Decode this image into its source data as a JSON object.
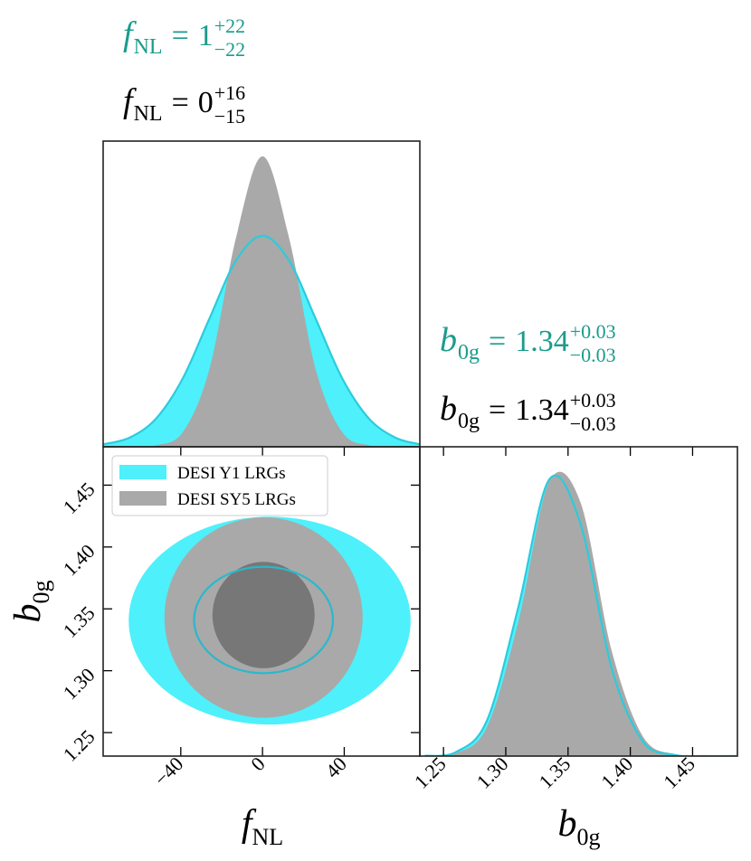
{
  "chart_data": [
    {
      "type": "density",
      "titles": [
        {
          "symbol": "f",
          "subscript": "NL",
          "relation": "=",
          "value": "1",
          "upper": "+22",
          "lower": "−22",
          "color": "#1a9c8c"
        },
        {
          "symbol": "f",
          "subscript": "NL",
          "relation": "=",
          "value": "0",
          "upper": "+16",
          "lower": "−15",
          "color": "#000000"
        }
      ],
      "xlim": [
        -78,
        77
      ],
      "ylim": [
        0,
        1
      ],
      "x": [
        -78,
        -65,
        -52,
        -39,
        -26,
        -13,
        0,
        13,
        26,
        39,
        52,
        65,
        77
      ],
      "series": [
        {
          "color": "#4ef0fb",
          "edge": "#2ccbdc",
          "values": [
            0.008,
            0.03,
            0.093,
            0.224,
            0.419,
            0.609,
            0.69,
            0.609,
            0.419,
            0.224,
            0.093,
            0.03,
            0.008
          ]
        },
        {
          "color": "#a9a9a9",
          "values": [
            0,
            0,
            0.005,
            0.048,
            0.254,
            0.683,
            0.95,
            0.683,
            0.254,
            0.048,
            0.005,
            0,
            0
          ]
        }
      ]
    },
    {
      "type": "contour",
      "xlabel": {
        "symbol": "f",
        "subscript": "NL"
      },
      "ylabel": {
        "symbol": "b",
        "subscript": "0g"
      },
      "xlim": [
        -78,
        77
      ],
      "ylim": [
        1.231,
        1.481
      ],
      "xticks": [
        {
          "value": -40,
          "label": "−40"
        },
        0,
        40
      ],
      "yticks": [
        1.25,
        {
          "value": 1.3,
          "label": "1.30"
        },
        1.35,
        {
          "value": 1.4,
          "label": "1.40"
        },
        1.45
      ],
      "legend": "upper left",
      "series": [
        {
          "name": "DESI Y1 LRGs",
          "color": "#4ef0fb",
          "edge": "#2ab8cc",
          "ellipses": [
            {
              "cx": 3.5,
              "cy": 1.3405,
              "rx": 69,
              "ry": 0.084
            },
            {
              "cx": 0.5,
              "cy": 1.341,
              "rx": 34,
              "ry": 0.043
            }
          ]
        },
        {
          "name": "DESI SY5 LRGs",
          "color": "#a9a9a9",
          "inner": "#777777",
          "ellipses": [
            {
              "cx": 0.5,
              "cy": 1.343,
              "rx": 48.5,
              "ry": 0.081
            },
            {
              "cx": 0.5,
              "cy": 1.345,
              "rx": 25,
              "ry": 0.043
            }
          ]
        }
      ]
    },
    {
      "type": "density",
      "titles": [
        {
          "symbol": "b",
          "subscript": "0g",
          "relation": "=",
          "value": "1.34",
          "upper": "+0.03",
          "lower": "−0.03",
          "color": "#1a9c8c"
        },
        {
          "symbol": "b",
          "subscript": "0g",
          "relation": "=",
          "value": "1.34",
          "upper": "+0.03",
          "lower": "−0.03",
          "color": "#000000"
        }
      ],
      "xlim": [
        1.231,
        1.486
      ],
      "ylim": [
        0,
        1
      ],
      "xticks": [
        1.25,
        {
          "value": 1.3,
          "label": "1.30"
        },
        1.35,
        {
          "value": 1.4,
          "label": "1.40"
        },
        1.45
      ],
      "x": [
        1.235,
        1.26,
        1.285,
        1.31,
        1.335,
        1.36,
        1.385,
        1.41,
        1.435,
        1.46,
        1.485
      ],
      "series": [
        {
          "color": "#4ef0fb",
          "edge": "#2ccbdc",
          "values": [
            0.001,
            0.013,
            0.116,
            0.48,
            0.895,
            0.751,
            0.284,
            0.048,
            0.004,
            0,
            0
          ]
        },
        {
          "color": "#a9a9a9",
          "values": [
            0,
            0.009,
            0.095,
            0.434,
            0.888,
            0.82,
            0.341,
            0.064,
            0.006,
            0,
            0
          ]
        }
      ]
    }
  ]
}
